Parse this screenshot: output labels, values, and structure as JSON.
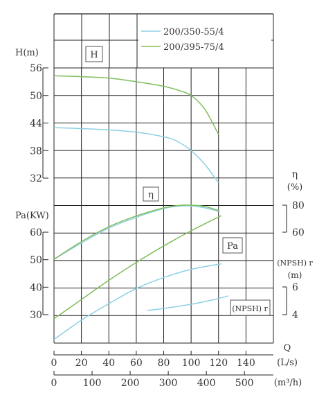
{
  "chart_data": {
    "type": "line",
    "title": "",
    "legend": {
      "placement": "top-right",
      "entries": [
        {
          "label": "200/350-55/4",
          "color": "#8dcfe4"
        },
        {
          "label": "200/395-75/4",
          "color": "#7fbd5a"
        }
      ]
    },
    "panel_labels": {
      "head": "H",
      "efficiency": "η",
      "power": "Pa",
      "npsh": "(NPSH) r"
    },
    "axes": {
      "head": {
        "label": "H(m)",
        "ticks": [
          "56",
          "50",
          "44",
          "38",
          "32"
        ],
        "range": [
          32,
          56
        ]
      },
      "power": {
        "label": "Pa(KW)",
        "ticks": [
          "60",
          "50",
          "40",
          "30"
        ],
        "range": [
          30,
          60
        ]
      },
      "efficiency": {
        "label": "η",
        "unit": "(%)",
        "ticks": [
          "80",
          "60"
        ],
        "range": [
          60,
          80
        ]
      },
      "npsh": {
        "label": "(NPSH) r",
        "unit": "(m)",
        "ticks": [
          "6",
          "4"
        ],
        "range": [
          4,
          6
        ]
      },
      "flow_ls": {
        "label": "Q",
        "unit": "(L/s)",
        "ticks": [
          "0",
          "20",
          "40",
          "60",
          "80",
          "100",
          "120",
          "140"
        ],
        "range": [
          0,
          160
        ]
      },
      "flow_m3h": {
        "unit": "(m³/h)",
        "ticks": [
          "0",
          "100",
          "200",
          "300",
          "400",
          "500"
        ],
        "range": [
          0,
          576
        ]
      }
    },
    "grid": true,
    "series": [
      {
        "name": "200/350-55/4",
        "curve": "head",
        "color": "#8dcfe4",
        "x": [
          0,
          20,
          40,
          60,
          80,
          90,
          100,
          110,
          120
        ],
        "y": [
          43.0,
          42.8,
          42.5,
          42.0,
          41.0,
          40.0,
          38.0,
          35.0,
          31.0
        ]
      },
      {
        "name": "200/395-75/4",
        "curve": "head",
        "color": "#7fbd5a",
        "x": [
          0,
          20,
          40,
          60,
          80,
          90,
          100,
          110,
          120
        ],
        "y": [
          54.3,
          54.1,
          53.8,
          53.0,
          52.0,
          51.2,
          50.0,
          47.0,
          41.5
        ]
      },
      {
        "name": "200/350-55/4",
        "curve": "efficiency",
        "color": "#8dcfe4",
        "x": [
          0,
          20,
          40,
          60,
          80,
          90,
          100,
          110,
          120
        ],
        "y": [
          40.0,
          52.0,
          63.0,
          71.0,
          77.5,
          79.2,
          79.5,
          78.0,
          75.5
        ]
      },
      {
        "name": "200/395-75/4",
        "curve": "efficiency",
        "color": "#7fbd5a",
        "x": [
          0,
          20,
          40,
          60,
          80,
          90,
          100,
          110,
          120
        ],
        "y": [
          40.0,
          53.0,
          64.0,
          72.0,
          78.0,
          79.7,
          80.0,
          79.0,
          76.0
        ]
      },
      {
        "name": "200/350-55/4",
        "curve": "power",
        "color": "#8dcfe4",
        "x": [
          0,
          20,
          40,
          60,
          80,
          100,
          122
        ],
        "y": [
          21.0,
          28.0,
          34.0,
          39.5,
          43.5,
          46.5,
          48.5
        ]
      },
      {
        "name": "200/395-75/4",
        "curve": "power",
        "color": "#7fbd5a",
        "x": [
          0,
          20,
          40,
          60,
          80,
          100,
          122
        ],
        "y": [
          28.5,
          35.5,
          42.5,
          49.0,
          55.0,
          60.5,
          66.0
        ]
      },
      {
        "name": "200/350-55/4",
        "curve": "npsh",
        "color": "#8dcfe4",
        "x": [
          68,
          80,
          100,
          115,
          127
        ],
        "y": [
          4.3,
          4.45,
          4.75,
          5.05,
          5.35
        ]
      }
    ]
  }
}
